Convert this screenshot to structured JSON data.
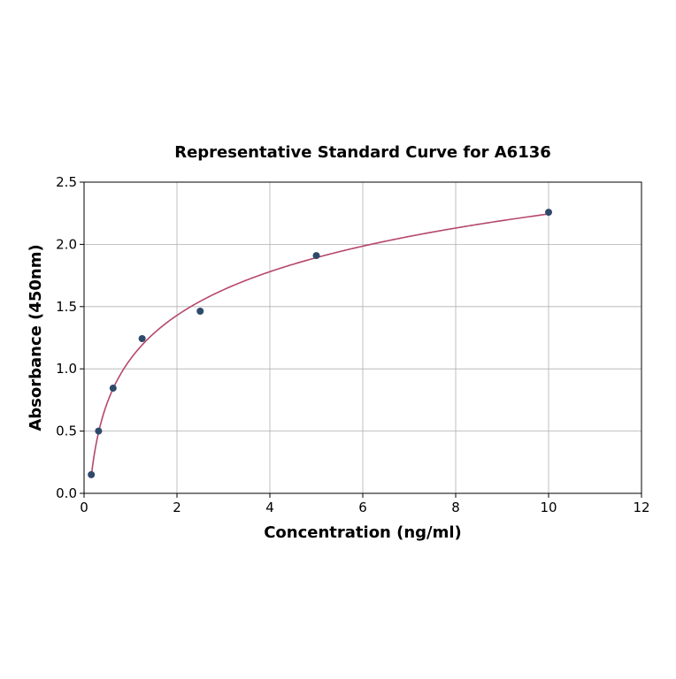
{
  "chart_data": {
    "type": "scatter",
    "title": "Representative Standard Curve for A6136",
    "xlabel": "Concentration (ng/ml)",
    "ylabel": "Absorbance (450nm)",
    "xlim": [
      0,
      12
    ],
    "ylim": [
      0,
      2.5
    ],
    "xticks": [
      0,
      2,
      4,
      6,
      8,
      10,
      12
    ],
    "yticks": [
      0.0,
      0.5,
      1.0,
      1.5,
      2.0,
      2.5
    ],
    "xtick_labels": [
      "0",
      "2",
      "4",
      "6",
      "8",
      "10",
      "12"
    ],
    "ytick_labels": [
      "0.0",
      "0.5",
      "1.0",
      "1.5",
      "2.0",
      "2.5"
    ],
    "grid": true,
    "points": {
      "x": [
        0.156,
        0.312,
        0.625,
        1.25,
        2.5,
        5,
        10
      ],
      "y": [
        0.15,
        0.5,
        0.845,
        1.243,
        1.463,
        1.91,
        2.258
      ]
    },
    "fit_curve": {
      "model": "logarithmic",
      "a": 1.079,
      "b": 0.506,
      "x_range": [
        0.156,
        10
      ]
    },
    "colors": {
      "points": "#2e4a6b",
      "curve": "#b5476b",
      "grid": "#b0b0b0"
    }
  }
}
